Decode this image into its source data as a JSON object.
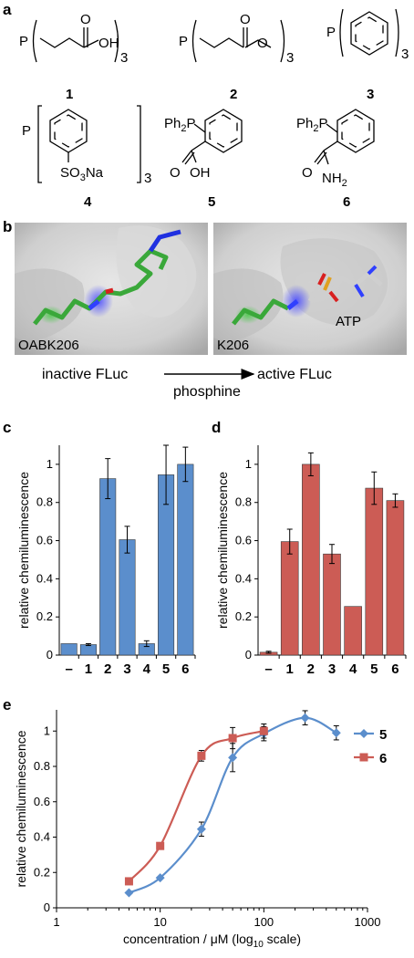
{
  "panel_a": {
    "label": "a",
    "compounds": [
      {
        "id": "1",
        "p": "P",
        "end": "OH",
        "o": "O",
        "sub": "3"
      },
      {
        "id": "2",
        "p": "P",
        "o": "O",
        "sub": "3"
      },
      {
        "id": "3",
        "p": "P",
        "sub": "3"
      },
      {
        "id": "4",
        "p": "P",
        "group": "SO3Na",
        "sub": "3"
      },
      {
        "id": "5",
        "p": "Ph2P",
        "o": "O",
        "end": "OH"
      },
      {
        "id": "6",
        "p": "Ph2P",
        "o": "O",
        "end": "NH2"
      }
    ]
  },
  "panel_b": {
    "label": "b",
    "left_label": "OABK206",
    "right_label": "K206",
    "atp_label": "ATP",
    "from_text": "inactive FLuc",
    "arrow_label": "phosphine",
    "to_text": "active FLuc"
  },
  "chart_data": [
    {
      "panel": "c",
      "type": "bar",
      "categories": [
        "–",
        "1",
        "2",
        "3",
        "4",
        "5",
        "6"
      ],
      "values": [
        0.06,
        0.055,
        0.925,
        0.605,
        0.06,
        0.945,
        1.0
      ],
      "errors": [
        0.0,
        0.005,
        0.105,
        0.07,
        0.015,
        0.155,
        0.09
      ],
      "ylabel": "relative chemiluminescence",
      "ylim": [
        0,
        1.1
      ],
      "yticks": [
        "0",
        "0.2",
        "0.4",
        "0.6",
        "0.8",
        "1"
      ],
      "color": "#5B8ECC"
    },
    {
      "panel": "d",
      "type": "bar",
      "categories": [
        "–",
        "1",
        "2",
        "3",
        "4",
        "5",
        "6"
      ],
      "values": [
        0.015,
        0.595,
        1.0,
        0.53,
        0.255,
        0.875,
        0.81
      ],
      "errors": [
        0.005,
        0.065,
        0.06,
        0.05,
        0.0,
        0.085,
        0.035
      ],
      "ylabel": "relative chemiluminescence",
      "ylim": [
        0,
        1.1
      ],
      "yticks": [
        "0",
        "0.2",
        "0.4",
        "0.6",
        "0.8",
        "1"
      ],
      "color": "#CC5C55"
    },
    {
      "panel": "e",
      "type": "scatter",
      "xscale": "log",
      "xlim": [
        1,
        1000
      ],
      "ylim": [
        0,
        1.12
      ],
      "xticks": [
        "1",
        "10",
        "100",
        "1000"
      ],
      "yticks": [
        "0",
        "0.2",
        "0.4",
        "0.6",
        "0.8",
        "1"
      ],
      "xlabel": "concentration / μM (log10 scale)",
      "ylabel": "relative chemiluminescence",
      "legend": "right",
      "series": [
        {
          "name": "5",
          "color": "#5B8ECC",
          "marker": "diamond",
          "x": [
            5,
            10,
            25,
            50,
            100,
            250,
            500
          ],
          "y": [
            0.085,
            0.17,
            0.445,
            0.85,
            0.985,
            1.075,
            0.99
          ],
          "err": [
            0.0,
            0.0,
            0.04,
            0.08,
            0.04,
            0.04,
            0.04
          ]
        },
        {
          "name": "6",
          "color": "#CC5C55",
          "marker": "square",
          "x": [
            5,
            10,
            25,
            50,
            100
          ],
          "y": [
            0.15,
            0.35,
            0.86,
            0.96,
            1.0
          ],
          "err": [
            0.0,
            0.0,
            0.03,
            0.06,
            0.04
          ]
        }
      ]
    }
  ]
}
